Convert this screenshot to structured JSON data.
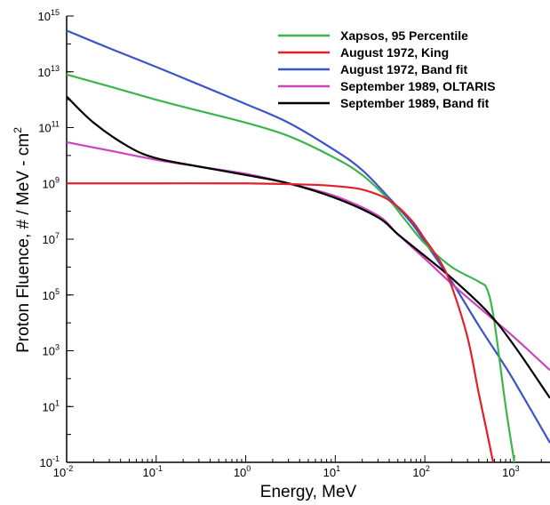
{
  "chart_data": {
    "type": "line",
    "xlabel": "Energy,  MeV",
    "ylabel": "Proton Fluence,  # / MeV - cm",
    "ylabel_sup": "2",
    "xscale": "log",
    "yscale": "log",
    "xlim": [
      0.01,
      2500
    ],
    "ylim": [
      0.1,
      1000000000000000.0
    ],
    "grid": false,
    "legend_position": "top-right",
    "x_ticks": [
      {
        "base": "10",
        "exp": "-2",
        "value": 0.01
      },
      {
        "base": "10",
        "exp": "-1",
        "value": 0.1
      },
      {
        "base": "10",
        "exp": "0",
        "value": 1
      },
      {
        "base": "10",
        "exp": "1",
        "value": 10
      },
      {
        "base": "10",
        "exp": "2",
        "value": 100
      },
      {
        "base": "10",
        "exp": "3",
        "value": 1000
      }
    ],
    "y_ticks": [
      {
        "base": "10",
        "exp": "-1",
        "value": 0.1
      },
      {
        "base": "10",
        "exp": "1",
        "value": 10
      },
      {
        "base": "10",
        "exp": "3",
        "value": 1000
      },
      {
        "base": "10",
        "exp": "5",
        "value": 100000.0
      },
      {
        "base": "10",
        "exp": "7",
        "value": 10000000.0
      },
      {
        "base": "10",
        "exp": "9",
        "value": 1000000000.0
      },
      {
        "base": "10",
        "exp": "11",
        "value": 100000000000.0
      },
      {
        "base": "10",
        "exp": "13",
        "value": 10000000000000.0
      },
      {
        "base": "10",
        "exp": "15",
        "value": 1000000000000000.0
      }
    ],
    "series": [
      {
        "name": "Xapsos, 95 Percentile",
        "color": "#3cb44b",
        "points": [
          [
            0.01,
            8000000000000.0
          ],
          [
            0.03,
            3000000000000.0
          ],
          [
            0.1,
            1000000000000.0
          ],
          [
            0.3,
            400000000000.0
          ],
          [
            1,
            150000000000.0
          ],
          [
            3,
            50000000000.0
          ],
          [
            10,
            8000000000.0
          ],
          [
            20,
            2000000000.0
          ],
          [
            40,
            250000000.0
          ],
          [
            60,
            50000000.0
          ],
          [
            100,
            7000000.0
          ],
          [
            200,
            1000000.0
          ],
          [
            400,
            300000.0
          ],
          [
            500,
            150000.0
          ],
          [
            600,
            10000.0
          ],
          [
            800,
            10
          ],
          [
            1000,
            0.1
          ]
        ]
      },
      {
        "name": "August 1972, King",
        "color": "#e0202a",
        "points": [
          [
            0.01,
            1000000000.0
          ],
          [
            0.1,
            1000000000.0
          ],
          [
            1,
            1000000000.0
          ],
          [
            5,
            900000000.0
          ],
          [
            10,
            800000000.0
          ],
          [
            20,
            600000000.0
          ],
          [
            40,
            250000000.0
          ],
          [
            70,
            50000000.0
          ],
          [
            100,
            10000000.0
          ],
          [
            150,
            1500000.0
          ],
          [
            200,
            200000.0
          ],
          [
            300,
            3000.0
          ],
          [
            400,
            30
          ],
          [
            500,
            1
          ],
          [
            580,
            0.1
          ]
        ]
      },
      {
        "name": "August 1972, Band fit",
        "color": "#3b55c8",
        "points": [
          [
            0.01,
            300000000000000.0
          ],
          [
            0.03,
            70000000000000.0
          ],
          [
            0.1,
            15000000000000.0
          ],
          [
            0.3,
            3500000000000.0
          ],
          [
            1,
            700000000000.0
          ],
          [
            3,
            150000000000.0
          ],
          [
            10,
            15000000000.0
          ],
          [
            20,
            3000000000.0
          ],
          [
            40,
            300000000.0
          ],
          [
            70,
            40000000.0
          ],
          [
            100,
            8000000.0
          ],
          [
            200,
            300000.0
          ],
          [
            400,
            8000.0
          ],
          [
            700,
            500
          ],
          [
            1000,
            80
          ],
          [
            2500,
            0.5
          ]
        ]
      },
      {
        "name": "September 1989, OLTARIS",
        "color": "#cc44bb",
        "points": [
          [
            0.01,
            30000000000.0
          ],
          [
            0.03,
            15000000000.0
          ],
          [
            0.1,
            7000000000.0
          ],
          [
            0.3,
            4000000000.0
          ],
          [
            1,
            2200000000.0
          ],
          [
            3,
            1000000000.0
          ],
          [
            10,
            350000000.0
          ],
          [
            30,
            70000000.0
          ],
          [
            50,
            15000000.0
          ],
          [
            100,
            2000000.0
          ],
          [
            200,
            250000.0
          ],
          [
            500,
            20000.0
          ],
          [
            1000,
            3000.0
          ],
          [
            2500,
            200
          ]
        ]
      },
      {
        "name": "September 1989, Band fit",
        "color": "#000000",
        "points": [
          [
            0.01,
            1300000000000.0
          ],
          [
            0.02,
            150000000000.0
          ],
          [
            0.05,
            20000000000.0
          ],
          [
            0.1,
            8000000000.0
          ],
          [
            0.3,
            4000000000.0
          ],
          [
            1,
            2000000000.0
          ],
          [
            3,
            1000000000.0
          ],
          [
            10,
            300000000.0
          ],
          [
            30,
            60000000.0
          ],
          [
            50,
            15000000.0
          ],
          [
            100,
            2500000.0
          ],
          [
            200,
            400000.0
          ],
          [
            500,
            25000.0
          ],
          [
            1000,
            1500.0
          ],
          [
            2500,
            20
          ]
        ]
      }
    ]
  }
}
